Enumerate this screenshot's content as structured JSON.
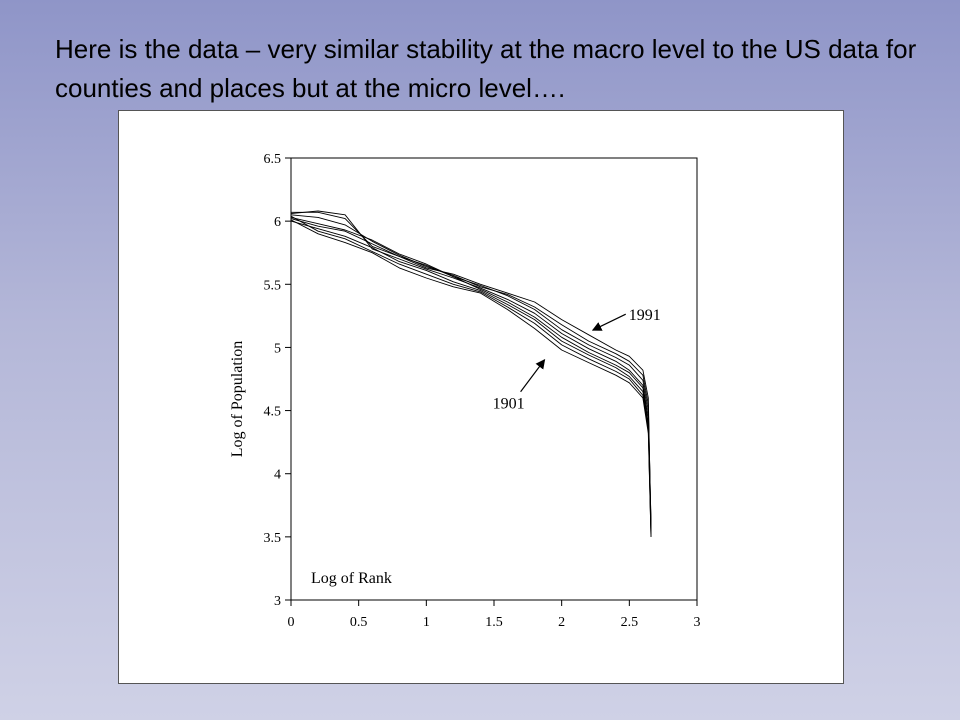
{
  "slide": {
    "title": "Here is the data – very similar stability at the macro level to the US data for counties and places but at the micro level…."
  },
  "chart_data": {
    "type": "line",
    "title": "",
    "xlabel": "Log of Rank",
    "ylabel": "Log of Population",
    "xlim": [
      0,
      3
    ],
    "ylim": [
      3,
      6.5
    ],
    "xticks": [
      "0",
      "0.5",
      "1",
      "1.5",
      "2",
      "2.5",
      "3"
    ],
    "yticks": [
      "3",
      "3.5",
      "4",
      "4.5",
      "5",
      "5.5",
      "6",
      "6.5"
    ],
    "grid": false,
    "legend": "none",
    "annotations": [
      {
        "text": "1991",
        "x": 2.2,
        "y": 5.2
      },
      {
        "text": "1901",
        "x": 1.8,
        "y": 4.95
      }
    ],
    "x": [
      0,
      0.2,
      0.4,
      0.6,
      0.8,
      1.0,
      1.2,
      1.4,
      1.6,
      1.8,
      2.0,
      2.2,
      2.4,
      2.5,
      2.6,
      2.64,
      2.66
    ],
    "series": [
      {
        "values": [
          6.07,
          6.07,
          6.02,
          5.8,
          5.72,
          5.63,
          5.58,
          5.5,
          5.43,
          5.36,
          5.22,
          5.1,
          4.98,
          4.93,
          4.82,
          4.6,
          3.55
        ]
      },
      {
        "values": [
          6.05,
          6.03,
          5.97,
          5.84,
          5.73,
          5.64,
          5.57,
          5.48,
          5.42,
          5.32,
          5.18,
          5.05,
          4.95,
          4.89,
          4.78,
          4.55,
          3.6
        ]
      },
      {
        "values": [
          6.03,
          5.98,
          5.93,
          5.85,
          5.74,
          5.66,
          5.56,
          5.49,
          5.41,
          5.3,
          5.14,
          5.02,
          4.92,
          4.86,
          4.74,
          4.5,
          3.62
        ]
      },
      {
        "values": [
          6.06,
          6.08,
          6.05,
          5.78,
          5.7,
          5.62,
          5.55,
          5.47,
          5.38,
          5.27,
          5.11,
          4.99,
          4.89,
          4.82,
          4.7,
          4.45,
          3.58
        ]
      },
      {
        "values": [
          6.02,
          5.96,
          5.92,
          5.82,
          5.72,
          5.65,
          5.56,
          5.46,
          5.36,
          5.24,
          5.08,
          4.96,
          4.86,
          4.8,
          4.68,
          4.4,
          3.55
        ]
      },
      {
        "values": [
          6.0,
          5.94,
          5.88,
          5.79,
          5.68,
          5.61,
          5.52,
          5.45,
          5.34,
          5.22,
          5.05,
          4.94,
          4.84,
          4.77,
          4.65,
          4.38,
          3.52
        ]
      },
      {
        "values": [
          6.04,
          5.92,
          5.86,
          5.76,
          5.66,
          5.58,
          5.5,
          5.44,
          5.32,
          5.19,
          5.02,
          4.91,
          4.81,
          4.75,
          4.62,
          4.35,
          3.5
        ]
      },
      {
        "values": [
          6.01,
          5.9,
          5.83,
          5.75,
          5.63,
          5.55,
          5.48,
          5.43,
          5.3,
          5.15,
          4.98,
          4.88,
          4.78,
          4.72,
          4.6,
          4.32,
          3.5
        ]
      }
    ]
  }
}
